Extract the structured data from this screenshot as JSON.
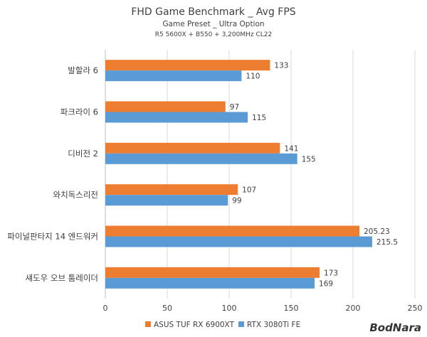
{
  "chart_data": {
    "type": "bar",
    "orientation": "horizontal",
    "title": "FHD Game Benchmark _ Avg FPS",
    "subtitle": "Game Preset _ Ultra Option",
    "subtitle2": "R5 5600X + B550 + 3,200MHz CL22",
    "categories": [
      "발할라 6",
      "파크라이 6",
      "디비전 2",
      "와치독스리전",
      "파이널판타지 14 엔드워커",
      "섀도우 오브 툼레이더"
    ],
    "series": [
      {
        "name": "ASUS TUF RX 6900XT",
        "color": "#ed7d31",
        "values": [
          133,
          97,
          141,
          107,
          205.23,
          173
        ],
        "labels": [
          "133",
          "97",
          "141",
          "107",
          "205.23",
          "173"
        ]
      },
      {
        "name": "RTX 3080Ti FE",
        "color": "#5b9bd5",
        "values": [
          110,
          115,
          155,
          99,
          215.5,
          169
        ],
        "labels": [
          "110",
          "115",
          "155",
          "99",
          "215.5",
          "169"
        ]
      }
    ],
    "xlim": [
      0,
      250
    ],
    "xticks": [
      0,
      50,
      100,
      150,
      200,
      250
    ],
    "xtick_labels": [
      "0",
      "50",
      "100",
      "150",
      "200",
      "250"
    ],
    "grid": true,
    "legend_position": "bottom"
  },
  "watermark": "BodNara"
}
